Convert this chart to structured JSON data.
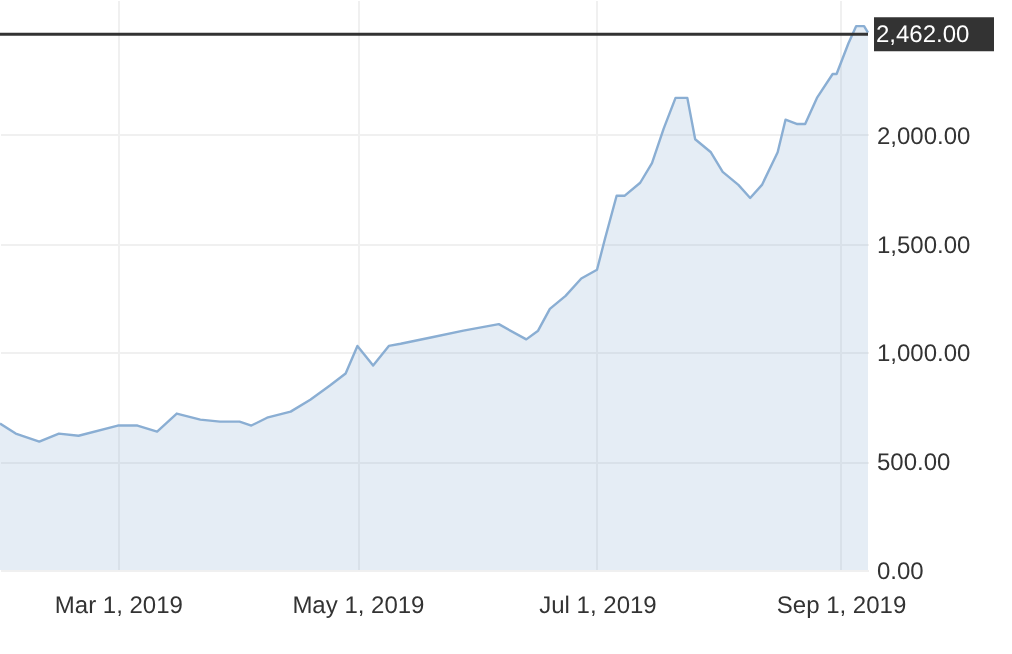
{
  "chart_data": {
    "type": "area",
    "x": [
      "2019-01-30",
      "2019-02-03",
      "2019-02-09",
      "2019-02-14",
      "2019-02-19",
      "2019-03-01",
      "2019-03-06",
      "2019-03-11",
      "2019-03-16",
      "2019-03-22",
      "2019-03-27",
      "2019-04-01",
      "2019-04-04",
      "2019-04-08",
      "2019-04-14",
      "2019-04-19",
      "2019-04-24",
      "2019-04-28",
      "2019-05-01",
      "2019-05-05",
      "2019-05-09",
      "2019-05-12",
      "2019-05-20",
      "2019-05-28",
      "2019-06-06",
      "2019-06-13",
      "2019-06-16",
      "2019-06-19",
      "2019-06-23",
      "2019-06-27",
      "2019-07-01",
      "2019-07-03",
      "2019-07-06",
      "2019-07-08",
      "2019-07-12",
      "2019-07-15",
      "2019-07-18",
      "2019-07-21",
      "2019-07-24",
      "2019-07-26",
      "2019-07-30",
      "2019-08-02",
      "2019-08-06",
      "2019-08-09",
      "2019-08-12",
      "2019-08-16",
      "2019-08-18",
      "2019-08-21",
      "2019-08-23",
      "2019-08-26",
      "2019-08-30",
      "2019-08-31",
      "2019-09-03",
      "2019-09-05",
      "2019-09-07",
      "2019-09-08"
    ],
    "series": [
      {
        "color": "#8aaed3",
        "values": [
          673,
          627,
          590,
          627,
          617,
          664,
          664,
          636,
          719,
          691,
          682,
          682,
          664,
          700,
          728,
          783,
          848,
          903,
          1030,
          940,
          1030,
          1040,
          1070,
          1100,
          1130,
          1060,
          1100,
          1200,
          1260,
          1340,
          1380,
          1520,
          1720,
          1720,
          1780,
          1870,
          2030,
          2170,
          2170,
          1980,
          1920,
          1830,
          1770,
          1710,
          1770,
          1920,
          2070,
          2050,
          2050,
          2170,
          2280,
          2280,
          2420,
          2500,
          2500,
          2470
        ]
      }
    ],
    "xlim": [
      "2019-01-30",
      "2019-09-08"
    ],
    "xticks": [
      {
        "value": "2019-03-01",
        "label": "Mar 1, 2019"
      },
      {
        "value": "2019-05-01",
        "label": "May 1, 2019"
      },
      {
        "value": "2019-07-01",
        "label": "Jul 1, 2019"
      },
      {
        "value": "2019-09-01",
        "label": "Sep 1, 2019"
      }
    ],
    "ylim": [
      0,
      2620
    ],
    "yticks": [
      {
        "value": 0,
        "label": "0.00"
      },
      {
        "value": 500,
        "label": "500.00"
      },
      {
        "value": 1000,
        "label": "1,000.00"
      },
      {
        "value": 1500,
        "label": "1,500.00"
      },
      {
        "value": 2000,
        "label": "2,000.00"
      }
    ],
    "ref_lines": [
      {
        "axis": "y",
        "value": 2462,
        "label": "2,462.00",
        "color": "#333333"
      }
    ],
    "grid": true
  }
}
